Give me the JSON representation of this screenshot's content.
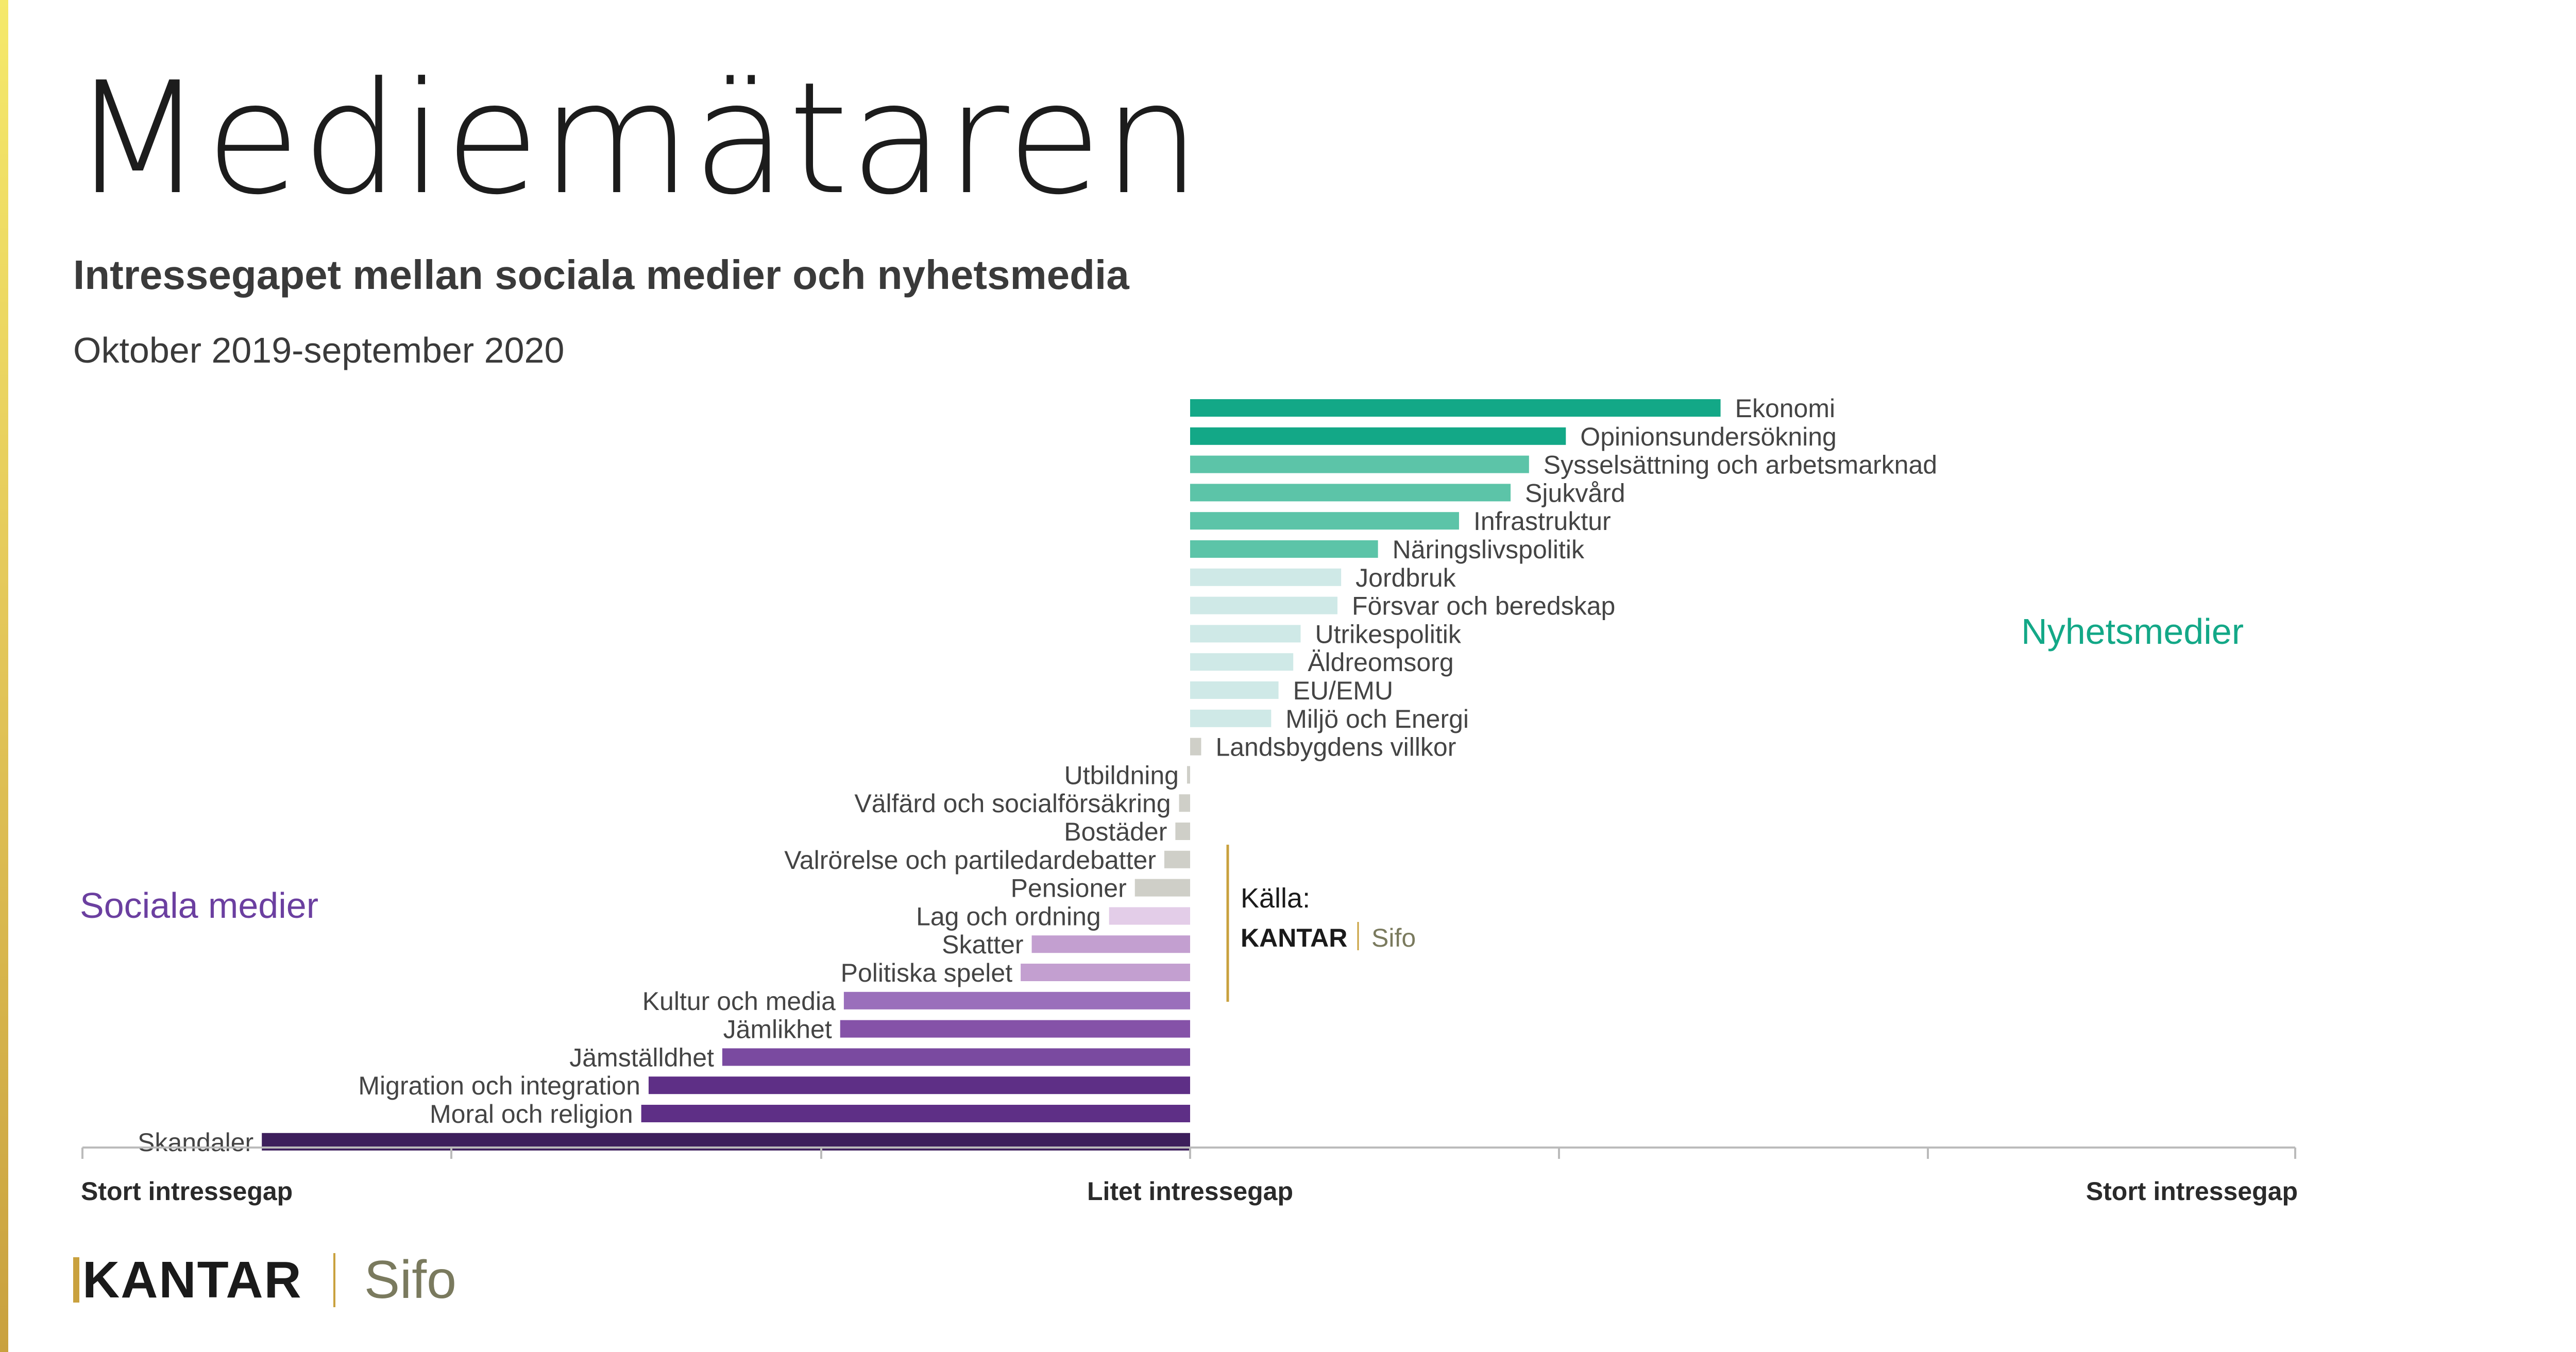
{
  "header": {
    "title": "Mediemätaren",
    "subtitle": "Intressegapet mellan sociala medier och nyhetsmedia",
    "period": "Oktober 2019-september 2020"
  },
  "source": {
    "label": "Källa:",
    "brand": "KANTAR",
    "sub_brand": "Sifo"
  },
  "footer": {
    "brand": "KANTAR",
    "sub_brand": "Sifo"
  },
  "colors": {
    "accent_gold": "#c9a13e",
    "news": "#13a887",
    "social": "#3d1f5c"
  },
  "chart_data": {
    "type": "bar",
    "orientation": "horizontal-diverging",
    "group_labels": {
      "news": "Nyhetsmedier",
      "social": "Sociala medier"
    },
    "x_tick_labels": [
      "Stort intressegap",
      "Litet intressegap",
      "Stort intressegap"
    ],
    "xlim": [
      -3,
      3
    ],
    "grid": false,
    "bars": [
      {
        "label": "Ekonomi",
        "value": 1.44,
        "color": "#13a887"
      },
      {
        "label": "Opinionsundersökning",
        "value": 1.02,
        "color": "#13a887"
      },
      {
        "label": "Sysselsättning och arbetsmarknad",
        "value": 0.92,
        "color": "#5cc4a8"
      },
      {
        "label": "Sjukvård",
        "value": 0.87,
        "color": "#5cc4a8"
      },
      {
        "label": "Infrastruktur",
        "value": 0.73,
        "color": "#5cc4a8"
      },
      {
        "label": "Näringslivspolitik",
        "value": 0.51,
        "color": "#5cc4a8"
      },
      {
        "label": "Jordbruk",
        "value": 0.41,
        "color": "#cfe9e7"
      },
      {
        "label": "Försvar och beredskap",
        "value": 0.4,
        "color": "#cfe9e7"
      },
      {
        "label": "Utrikespolitik",
        "value": 0.3,
        "color": "#cfe9e7"
      },
      {
        "label": "Äldreomsorg",
        "value": 0.28,
        "color": "#cfe9e7"
      },
      {
        "label": "EU/EMU",
        "value": 0.24,
        "color": "#cfe9e7"
      },
      {
        "label": "Miljö och Energi",
        "value": 0.22,
        "color": "#cfe9e7"
      },
      {
        "label": "Landsbygdens villkor",
        "value": 0.03,
        "color": "#cfcfc8"
      },
      {
        "label": "Utbildning",
        "value": -0.005,
        "color": "#cfcfc8"
      },
      {
        "label": "Välfärd och socialförsäkring",
        "value": -0.03,
        "color": "#cfcfc8"
      },
      {
        "label": "Bostäder",
        "value": -0.04,
        "color": "#cfcfc8"
      },
      {
        "label": "Valrörelse och partiledardebatter",
        "value": -0.07,
        "color": "#cfcfc8"
      },
      {
        "label": "Pensioner",
        "value": -0.15,
        "color": "#cfcfc8"
      },
      {
        "label": "Lag och ordning",
        "value": -0.22,
        "color": "#e3cde8"
      },
      {
        "label": "Skatter",
        "value": -0.43,
        "color": "#c39fd0"
      },
      {
        "label": "Politiska spelet",
        "value": -0.46,
        "color": "#c39fd0"
      },
      {
        "label": "Kultur och media",
        "value": -0.94,
        "color": "#9a6fbb"
      },
      {
        "label": "Jämlikhet",
        "value": -0.95,
        "color": "#8552a8"
      },
      {
        "label": "Jämställdhet",
        "value": -1.27,
        "color": "#7a4aa0"
      },
      {
        "label": "Migration och integration",
        "value": -1.47,
        "color": "#5e2f86"
      },
      {
        "label": "Moral och religion",
        "value": -1.49,
        "color": "#5e2f86"
      },
      {
        "label": "Skandaler",
        "value": -2.52,
        "color": "#3d1f5c"
      }
    ]
  }
}
